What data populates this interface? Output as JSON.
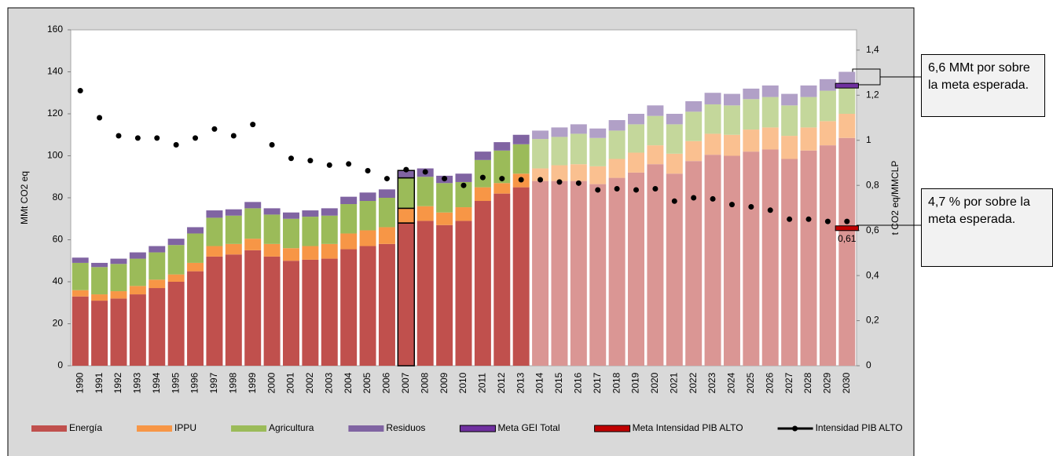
{
  "chart_data": {
    "type": "bar",
    "ylabel": "MMt CO2 eq",
    "y2label": "t CO2 eq/MMCLP",
    "categories": [
      "1990",
      "1991",
      "1992",
      "1993",
      "1994",
      "1995",
      "1996",
      "1997",
      "1998",
      "1999",
      "2000",
      "2001",
      "2002",
      "2003",
      "2004",
      "2005",
      "2006",
      "2007",
      "2008",
      "2009",
      "2010",
      "2011",
      "2012",
      "2013",
      "2014",
      "2015",
      "2016",
      "2017",
      "2018",
      "2019",
      "2020",
      "2021",
      "2022",
      "2023",
      "2024",
      "2025",
      "2026",
      "2027",
      "2028",
      "2029",
      "2030"
    ],
    "projection_start": "2014",
    "highlight": "2007",
    "ylim": [
      0,
      160
    ],
    "yticks": [
      0,
      20,
      40,
      60,
      80,
      100,
      120,
      140,
      160
    ],
    "y2lim": [
      0,
      1.49
    ],
    "y2ticks": [
      0,
      {
        "value": 0.2,
        "label": "0,2"
      },
      {
        "value": 0.4,
        "label": "0,4"
      },
      {
        "value": 0.6,
        "label": "0,6"
      },
      {
        "value": 0.8,
        "label": "0,8"
      },
      1,
      {
        "value": 1.2,
        "label": "1,2"
      },
      {
        "value": 1.4,
        "label": "1,4"
      }
    ],
    "series": [
      {
        "name": "Energía",
        "color": "#c0504d",
        "projected_color": "#da9694",
        "values": [
          33,
          31,
          32,
          34,
          37,
          40,
          45,
          52,
          53,
          55,
          52,
          50,
          50.5,
          51,
          55.5,
          57,
          58,
          68,
          69,
          67,
          69,
          78.5,
          82,
          85,
          88,
          88,
          88,
          86.5,
          89.5,
          92,
          96,
          91.5,
          97.5,
          100.5,
          100,
          102,
          103,
          98.5,
          102.5,
          105,
          108.5
        ]
      },
      {
        "name": "IPPU",
        "color": "#f79646",
        "projected_color": "#fac090",
        "values": [
          3,
          3,
          3.5,
          4,
          4,
          3.5,
          4,
          5,
          5,
          5.5,
          6,
          6,
          6.5,
          7,
          7.5,
          7.5,
          8,
          7,
          7,
          6,
          6.5,
          6.5,
          5,
          6.5,
          6,
          7.5,
          8,
          8.5,
          9,
          9.5,
          9,
          9.5,
          9.5,
          10,
          10,
          10.5,
          10.5,
          11,
          11,
          11.5,
          11.5
        ]
      },
      {
        "name": "Agricultura",
        "color": "#9bbb59",
        "projected_color": "#c4d79b",
        "values": [
          13,
          13,
          13,
          13,
          13,
          14,
          14,
          13.5,
          13.5,
          14.5,
          14,
          14,
          14,
          13.5,
          14,
          14,
          14,
          14.5,
          14,
          14,
          12,
          13,
          15.5,
          14,
          14,
          13.5,
          14.5,
          13.5,
          13.5,
          13.5,
          14,
          14,
          14,
          14,
          14,
          14.5,
          14.5,
          14.5,
          14.5,
          14.5,
          14
        ]
      },
      {
        "name": "Residuos",
        "color": "#8064a2",
        "projected_color": "#b1a0c7",
        "values": [
          2.5,
          2,
          2.5,
          3,
          3,
          3,
          3,
          3.5,
          3,
          3,
          3,
          3,
          3,
          3.5,
          3.5,
          4,
          4,
          3.5,
          4,
          3.5,
          4,
          4,
          4,
          4.5,
          4,
          4.5,
          4.5,
          4.5,
          5,
          5,
          5,
          5,
          5,
          5.5,
          5.5,
          5,
          5.5,
          5.5,
          5.5,
          5.5,
          6
        ]
      }
    ],
    "targets": [
      {
        "name": "Meta GEI Total",
        "color": "#7030a0",
        "category": "2030",
        "values": [
          133.4
        ]
      },
      {
        "name": "Meta Intensidad PIB ALTO",
        "color": "#c00000",
        "category": "2030",
        "axis": "y2",
        "values": [
          0.61
        ],
        "value_labels": [
          "0,61"
        ]
      }
    ],
    "line": {
      "name": "Intensidad PIB ALTO",
      "color": "#000000",
      "axis": "y2",
      "values": [
        1.22,
        1.1,
        1.02,
        1.01,
        1.01,
        0.98,
        1.01,
        1.05,
        1.02,
        1.07,
        0.98,
        0.92,
        0.91,
        0.89,
        0.895,
        0.865,
        0.83,
        0.87,
        0.86,
        0.83,
        0.8,
        0.835,
        0.83,
        0.825,
        0.825,
        0.815,
        0.81,
        0.78,
        0.785,
        0.78,
        0.785,
        0.73,
        0.745,
        0.74,
        0.715,
        0.705,
        0.69,
        0.65,
        0.65,
        0.64,
        0.64
      ]
    },
    "annotations": [
      "6,6 MMt por sobre la meta esperada.",
      "4,7 % por sobre la meta esperada."
    ]
  }
}
